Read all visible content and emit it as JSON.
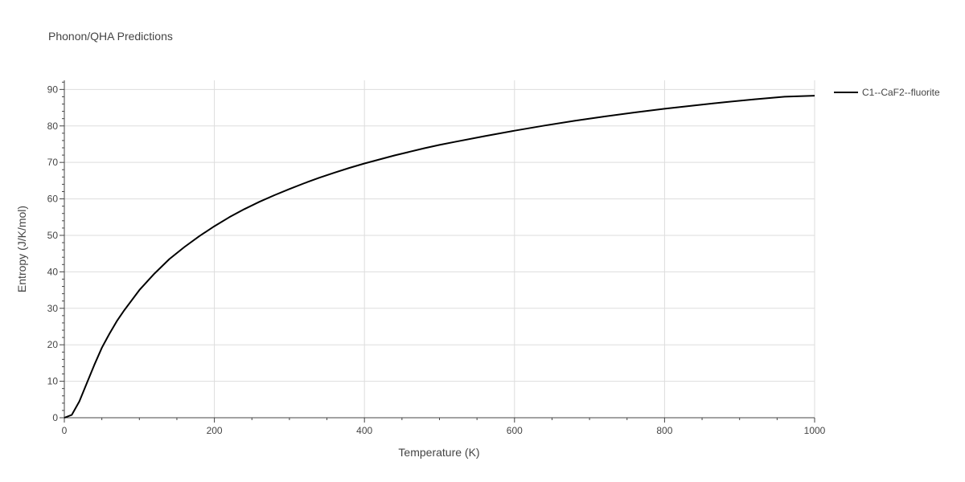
{
  "chart_data": {
    "type": "line",
    "title": "Phonon/QHA Predictions",
    "xlabel": "Temperature (K)",
    "ylabel": "Entropy (J/K/mol)",
    "xlim": [
      0,
      1000
    ],
    "ylim": [
      0,
      92.5
    ],
    "x_ticks": [
      0,
      200,
      400,
      600,
      800,
      1000
    ],
    "y_ticks": [
      0,
      10,
      20,
      30,
      40,
      50,
      60,
      70,
      80,
      90
    ],
    "grid": true,
    "legend": "top-right",
    "series": [
      {
        "name": "C1--CaF2--fluorite",
        "color": "#000000",
        "x": [
          0,
          10,
          20,
          30,
          40,
          50,
          60,
          70,
          80,
          100,
          120,
          140,
          160,
          180,
          200,
          220,
          240,
          260,
          280,
          300,
          320,
          340,
          360,
          380,
          400,
          440,
          480,
          500,
          520,
          560,
          600,
          640,
          680,
          720,
          760,
          800,
          840,
          880,
          920,
          960,
          1000
        ],
        "y": [
          0,
          0.8,
          4.5,
          9.5,
          14.5,
          19.2,
          23.0,
          26.5,
          29.5,
          35.0,
          39.5,
          43.5,
          46.8,
          49.8,
          52.5,
          55.0,
          57.2,
          59.2,
          61.0,
          62.7,
          64.3,
          65.8,
          67.2,
          68.5,
          69.7,
          71.9,
          73.9,
          74.8,
          75.6,
          77.2,
          78.7,
          80.1,
          81.4,
          82.6,
          83.7,
          84.7,
          85.6,
          86.5,
          87.3,
          88.0,
          88.3
        ]
      }
    ]
  }
}
